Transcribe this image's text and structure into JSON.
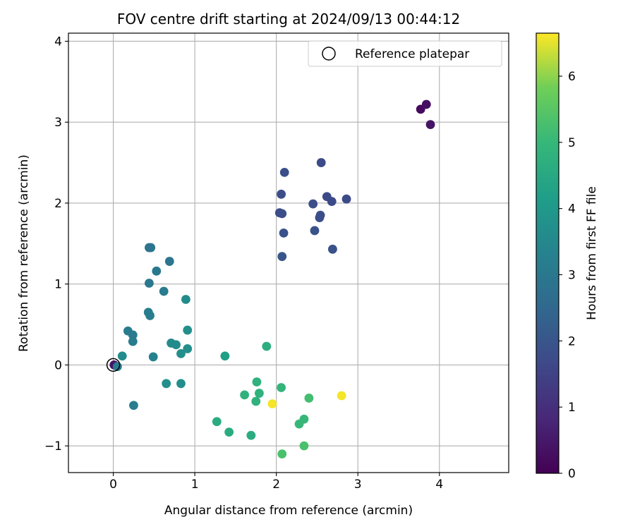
{
  "chart_data": {
    "type": "scatter",
    "title": "FOV centre drift starting at 2024/09/13 00:44:12",
    "xlabel": "Angular distance from reference (arcmin)",
    "ylabel": "Rotation from reference (arcmin)",
    "xlim": [
      -0.55,
      4.85
    ],
    "ylim": [
      -1.33,
      4.1
    ],
    "xticks": [
      0,
      1,
      2,
      3,
      4
    ],
    "yticks": [
      -1,
      0,
      1,
      2,
      3,
      4
    ],
    "xtick_labels": [
      "0",
      "1",
      "2",
      "3",
      "4"
    ],
    "ytick_labels": [
      "−1",
      "0",
      "1",
      "2",
      "3",
      "4"
    ],
    "grid": true,
    "legend": {
      "placement": "top-right",
      "entries": [
        "Reference platepar"
      ]
    },
    "colorbar": {
      "label": "Hours from first FF file",
      "colormap": "viridis",
      "range": [
        0,
        6.65
      ],
      "ticks": [
        0,
        1,
        2,
        3,
        4,
        5,
        6
      ],
      "tick_labels": [
        "0",
        "1",
        "2",
        "3",
        "4",
        "5",
        "6"
      ]
    },
    "reference_point": {
      "x": 0.0,
      "y": 0.0
    },
    "series": [
      {
        "points": [
          {
            "x": 3.77,
            "y": 3.16,
            "hours": 0.2
          },
          {
            "x": 3.84,
            "y": 3.22,
            "hours": 0.3
          },
          {
            "x": 3.89,
            "y": 2.97,
            "hours": 0.4
          },
          {
            "x": 2.55,
            "y": 2.5,
            "hours": 1.7
          },
          {
            "x": 2.1,
            "y": 2.38,
            "hours": 1.8
          },
          {
            "x": 2.06,
            "y": 2.11,
            "hours": 1.8
          },
          {
            "x": 2.62,
            "y": 2.08,
            "hours": 1.7
          },
          {
            "x": 2.86,
            "y": 2.05,
            "hours": 1.7
          },
          {
            "x": 2.68,
            "y": 2.02,
            "hours": 1.7
          },
          {
            "x": 2.45,
            "y": 1.99,
            "hours": 1.8
          },
          {
            "x": 2.04,
            "y": 1.88,
            "hours": 1.8
          },
          {
            "x": 2.07,
            "y": 1.87,
            "hours": 1.8
          },
          {
            "x": 2.54,
            "y": 1.85,
            "hours": 1.8
          },
          {
            "x": 2.53,
            "y": 1.82,
            "hours": 1.8
          },
          {
            "x": 2.09,
            "y": 1.63,
            "hours": 1.9
          },
          {
            "x": 2.47,
            "y": 1.66,
            "hours": 1.9
          },
          {
            "x": 2.69,
            "y": 1.43,
            "hours": 1.9
          },
          {
            "x": 2.07,
            "y": 1.34,
            "hours": 2.0
          },
          {
            "x": 0.44,
            "y": 1.45,
            "hours": 2.9
          },
          {
            "x": 0.46,
            "y": 1.45,
            "hours": 2.9
          },
          {
            "x": 0.69,
            "y": 1.28,
            "hours": 2.9
          },
          {
            "x": 0.53,
            "y": 1.16,
            "hours": 3.0
          },
          {
            "x": 0.44,
            "y": 1.01,
            "hours": 3.0
          },
          {
            "x": 0.62,
            "y": 0.91,
            "hours": 3.1
          },
          {
            "x": 0.89,
            "y": 0.81,
            "hours": 3.6
          },
          {
            "x": 0.43,
            "y": 0.65,
            "hours": 3.2
          },
          {
            "x": 0.45,
            "y": 0.61,
            "hours": 3.2
          },
          {
            "x": 0.91,
            "y": 0.43,
            "hours": 3.7
          },
          {
            "x": 0.18,
            "y": 0.42,
            "hours": 3.1
          },
          {
            "x": 0.24,
            "y": 0.37,
            "hours": 3.1
          },
          {
            "x": 0.24,
            "y": 0.29,
            "hours": 3.1
          },
          {
            "x": 0.71,
            "y": 0.27,
            "hours": 3.6
          },
          {
            "x": 0.77,
            "y": 0.25,
            "hours": 3.6
          },
          {
            "x": 0.91,
            "y": 0.2,
            "hours": 3.7
          },
          {
            "x": 0.83,
            "y": 0.14,
            "hours": 3.7
          },
          {
            "x": 0.11,
            "y": 0.11,
            "hours": 3.6
          },
          {
            "x": 0.49,
            "y": 0.1,
            "hours": 3.3
          },
          {
            "x": 0.01,
            "y": 0.0,
            "hours": 0.4
          },
          {
            "x": 0.05,
            "y": -0.02,
            "hours": 3.1
          },
          {
            "x": 0.65,
            "y": -0.23,
            "hours": 3.7
          },
          {
            "x": 0.83,
            "y": -0.23,
            "hours": 3.7
          },
          {
            "x": 0.25,
            "y": -0.5,
            "hours": 3.2
          },
          {
            "x": 1.37,
            "y": 0.11,
            "hours": 4.2
          },
          {
            "x": 1.88,
            "y": 0.23,
            "hours": 4.7
          },
          {
            "x": 1.76,
            "y": -0.21,
            "hours": 4.8
          },
          {
            "x": 2.06,
            "y": -0.28,
            "hours": 4.9
          },
          {
            "x": 1.79,
            "y": -0.35,
            "hours": 4.8
          },
          {
            "x": 1.61,
            "y": -0.37,
            "hours": 4.8
          },
          {
            "x": 1.75,
            "y": -0.45,
            "hours": 4.8
          },
          {
            "x": 2.4,
            "y": -0.41,
            "hours": 5.2
          },
          {
            "x": 2.8,
            "y": -0.38,
            "hours": 6.6
          },
          {
            "x": 1.95,
            "y": -0.48,
            "hours": 6.6
          },
          {
            "x": 1.27,
            "y": -0.7,
            "hours": 4.6
          },
          {
            "x": 1.42,
            "y": -0.83,
            "hours": 4.6
          },
          {
            "x": 1.69,
            "y": -0.87,
            "hours": 4.6
          },
          {
            "x": 2.34,
            "y": -0.67,
            "hours": 5.0
          },
          {
            "x": 2.28,
            "y": -0.73,
            "hours": 5.0
          },
          {
            "x": 2.34,
            "y": -1.0,
            "hours": 5.3
          },
          {
            "x": 2.07,
            "y": -1.1,
            "hours": 5.3
          }
        ]
      }
    ]
  }
}
